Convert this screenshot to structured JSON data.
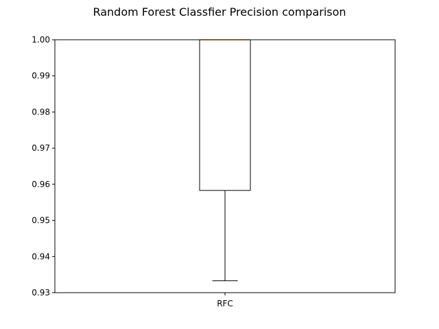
{
  "chart_data": {
    "type": "box",
    "title": "Random Forest Classfier Precision comparison",
    "xlabel": "",
    "ylabel": "",
    "categories": [
      "RFC"
    ],
    "ylim": [
      0.93,
      1.0
    ],
    "yticks": [
      "0.93",
      "0.94",
      "0.95",
      "0.96",
      "0.97",
      "0.98",
      "0.99",
      "1.00"
    ],
    "boxes": [
      {
        "label": "RFC",
        "whisker_low": 0.9333,
        "q1": 0.9583,
        "median": 1.0,
        "q3": 1.0,
        "whisker_high": 1.0
      }
    ],
    "grid": false,
    "colors": {
      "box": "#000000",
      "median": "#ff7f0e",
      "axes": "#000000"
    }
  }
}
